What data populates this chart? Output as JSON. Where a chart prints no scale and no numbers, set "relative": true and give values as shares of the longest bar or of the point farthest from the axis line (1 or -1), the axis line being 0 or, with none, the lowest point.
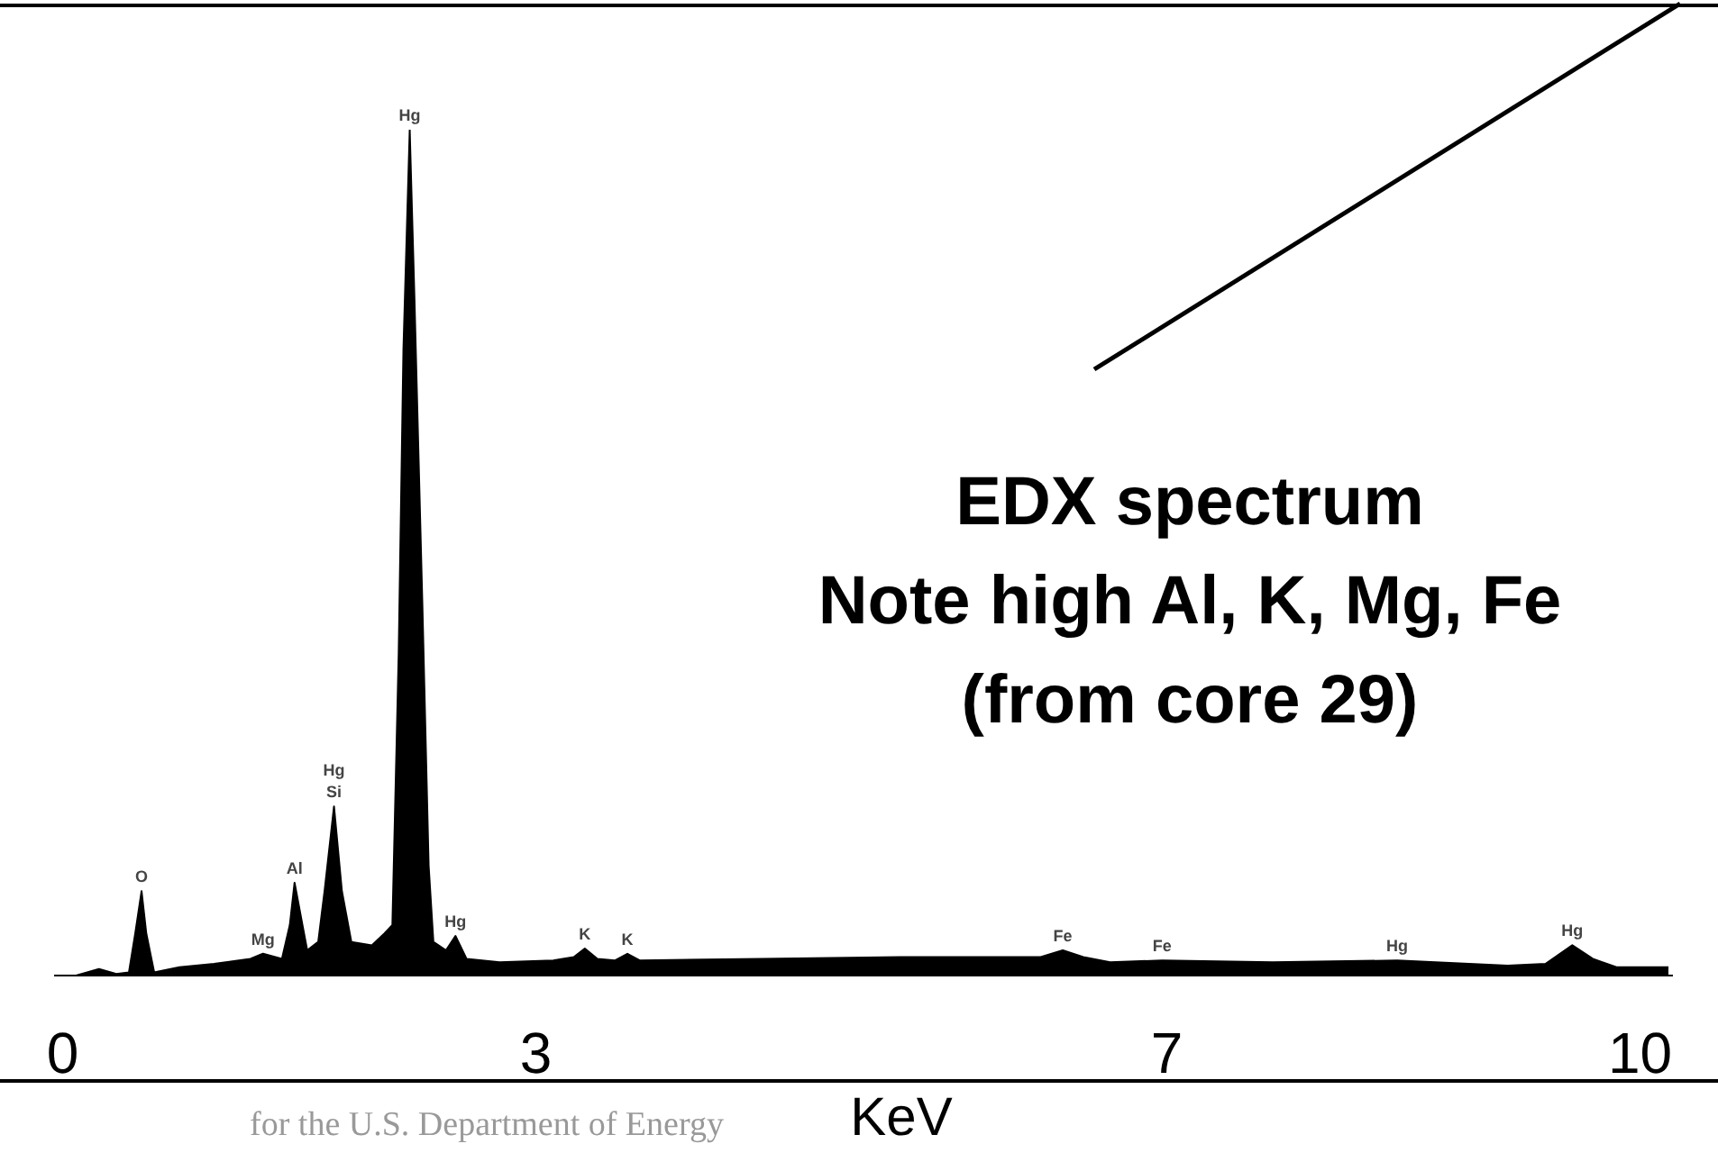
{
  "chart_data": {
    "type": "area",
    "relative": true,
    "title": "EDX spectrum",
    "subtitle": "Note high Al, K, Mg, Fe\n(from core 29)",
    "xlabel": "KeV",
    "xlim": [
      -0.05,
      10.2
    ],
    "xticks": [
      0,
      3,
      7,
      10
    ],
    "grid": false,
    "legend": false,
    "marker": "none",
    "x": [
      0.08,
      0.23,
      0.34,
      0.42,
      0.46,
      0.5,
      0.53,
      0.58,
      0.74,
      0.96,
      1.19,
      1.27,
      1.39,
      1.44,
      1.47,
      1.52,
      1.55,
      1.62,
      1.66,
      1.72,
      1.77,
      1.83,
      1.96,
      2.04,
      2.09,
      2.13,
      2.16,
      2.2,
      2.23,
      2.28,
      2.32,
      2.35,
      2.43,
      2.49,
      2.56,
      2.77,
      3.11,
      3.24,
      3.31,
      3.39,
      3.5,
      3.58,
      3.66,
      4.43,
      5.31,
      6.2,
      6.34,
      6.47,
      6.64,
      6.97,
      7.67,
      8.46,
      9.16,
      9.4,
      9.57,
      9.7,
      9.85,
      10.18
    ],
    "series": [
      {
        "color": "#000000",
        "values": [
          0,
          0.008,
          0.002,
          0.004,
          0.05,
          0.1,
          0.05,
          0.004,
          0.01,
          0.014,
          0.02,
          0.026,
          0.02,
          0.06,
          0.11,
          0.06,
          0.03,
          0.04,
          0.1,
          0.2,
          0.1,
          0.04,
          0.036,
          0.05,
          0.06,
          0.38,
          0.74,
          1,
          0.8,
          0.44,
          0.13,
          0.04,
          0.03,
          0.047,
          0.02,
          0.016,
          0.018,
          0.022,
          0.032,
          0.02,
          0.018,
          0.026,
          0.018,
          0.02,
          0.022,
          0.022,
          0.03,
          0.022,
          0.016,
          0.018,
          0.016,
          0.018,
          0.012,
          0.014,
          0.036,
          0.02,
          0.01,
          0.01
        ]
      }
    ],
    "annotations": [
      {
        "text": "O",
        "x": 0.5,
        "y": 0.1
      },
      {
        "text": "Mg",
        "x": 1.27,
        "y": 0.026
      },
      {
        "text": "Al",
        "x": 1.47,
        "y": 0.11
      },
      {
        "text": "Si",
        "x": 1.72,
        "y": 0.2
      },
      {
        "text": "Hg",
        "x": 1.72,
        "y": 0.2
      },
      {
        "text": "Hg",
        "x": 2.2,
        "y": 1
      },
      {
        "text": "Hg",
        "x": 2.49,
        "y": 0.047
      },
      {
        "text": "K",
        "x": 3.31,
        "y": 0.032
      },
      {
        "text": "K",
        "x": 3.58,
        "y": 0.026
      },
      {
        "text": "Fe",
        "x": 6.34,
        "y": 0.03
      },
      {
        "text": "Fe",
        "x": 6.97,
        "y": 0.018
      },
      {
        "text": "Hg",
        "x": 8.46,
        "y": 0.018
      },
      {
        "text": "Hg",
        "x": 9.57,
        "y": 0.036
      },
      "for the U.S. Department of Energy"
    ]
  }
}
